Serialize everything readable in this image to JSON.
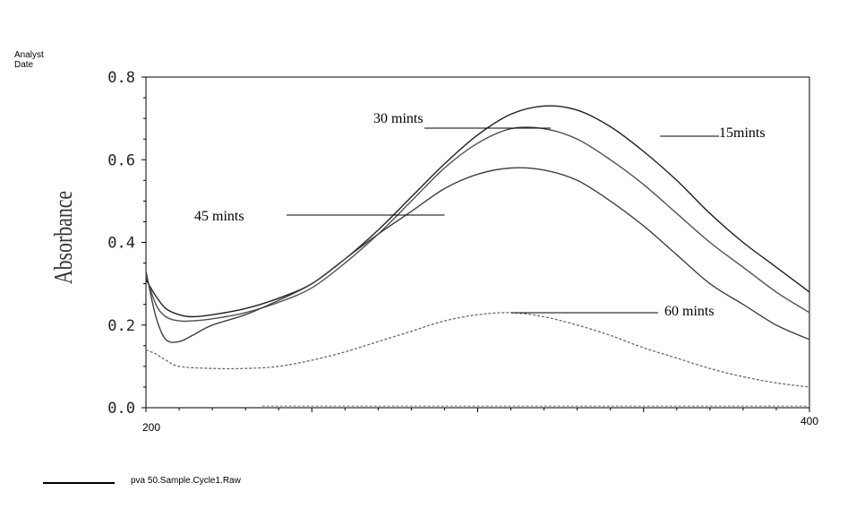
{
  "header": {
    "analyst_label": "Analyst",
    "date_label": "Date"
  },
  "legend": {
    "entry": "pva  50.Sample.Cycle1.Raw"
  },
  "chart_data": {
    "type": "line",
    "title": "",
    "xlabel": "",
    "ylabel": "Absorbance",
    "xlim": [
      200,
      400
    ],
    "ylim": [
      0.0,
      0.8
    ],
    "x_tick_labels": [
      "200",
      "400"
    ],
    "y_tick_labels": [
      "0.0",
      "0.2",
      "0.4",
      "0.6",
      "0.8"
    ],
    "grid": false,
    "series": [
      {
        "name": "15mints",
        "color": "#202020",
        "x": [
          200,
          203,
          206,
          210,
          214,
          220,
          230,
          240,
          250,
          260,
          270,
          280,
          290,
          300,
          310,
          320,
          330,
          340,
          350,
          360,
          370,
          380,
          390,
          400
        ],
        "y": [
          0.31,
          0.27,
          0.24,
          0.225,
          0.22,
          0.225,
          0.24,
          0.265,
          0.3,
          0.36,
          0.43,
          0.51,
          0.59,
          0.66,
          0.71,
          0.73,
          0.72,
          0.68,
          0.62,
          0.55,
          0.47,
          0.4,
          0.34,
          0.28
        ]
      },
      {
        "name": "30 mints",
        "color": "#505050",
        "x": [
          200,
          203,
          206,
          210,
          214,
          220,
          230,
          240,
          250,
          260,
          270,
          280,
          290,
          300,
          310,
          320,
          330,
          340,
          350,
          360,
          370,
          380,
          390,
          400
        ],
        "y": [
          0.32,
          0.25,
          0.22,
          0.21,
          0.21,
          0.215,
          0.23,
          0.255,
          0.29,
          0.35,
          0.42,
          0.5,
          0.58,
          0.64,
          0.675,
          0.675,
          0.65,
          0.6,
          0.54,
          0.47,
          0.4,
          0.34,
          0.28,
          0.23
        ]
      },
      {
        "name": "45 mints",
        "color": "#404040",
        "x": [
          200,
          203,
          206,
          210,
          214,
          220,
          230,
          240,
          250,
          260,
          270,
          280,
          290,
          300,
          310,
          320,
          330,
          340,
          350,
          360,
          370,
          380,
          390,
          400
        ],
        "y": [
          0.33,
          0.22,
          0.165,
          0.16,
          0.175,
          0.2,
          0.225,
          0.26,
          0.3,
          0.36,
          0.42,
          0.475,
          0.53,
          0.565,
          0.58,
          0.575,
          0.55,
          0.5,
          0.44,
          0.37,
          0.3,
          0.25,
          0.2,
          0.165
        ]
      },
      {
        "name": "60 mints",
        "color": "#6a6a6a",
        "dashed": true,
        "x": [
          200,
          203,
          206,
          210,
          220,
          230,
          240,
          250,
          260,
          270,
          280,
          290,
          300,
          310,
          320,
          330,
          340,
          350,
          360,
          370,
          380,
          390,
          400
        ],
        "y": [
          0.14,
          0.13,
          0.115,
          0.1,
          0.095,
          0.095,
          0.1,
          0.115,
          0.135,
          0.16,
          0.185,
          0.21,
          0.225,
          0.23,
          0.22,
          0.2,
          0.175,
          0.145,
          0.12,
          0.095,
          0.075,
          0.06,
          0.05
        ]
      },
      {
        "name": "",
        "color": "#9a9a9a",
        "dashed": true,
        "x": [
          235,
          400
        ],
        "y": [
          0.004,
          0.004
        ]
      }
    ],
    "annotations": [
      {
        "text": "30 mints",
        "series": "30 mints",
        "target_x": 322,
        "target_y": 0.675,
        "anchor": "line-left"
      },
      {
        "text": "15mints",
        "series": "15mints",
        "target_x": 355,
        "target_y": 0.65,
        "anchor": "line-right"
      },
      {
        "text": "45 mints",
        "series": "45 mints",
        "target_x": 290,
        "target_y": 0.46,
        "anchor": "line-left"
      },
      {
        "text": "60 mints",
        "series": "60 mints",
        "target_x": 310,
        "target_y": 0.23,
        "anchor": "line-right"
      }
    ]
  }
}
